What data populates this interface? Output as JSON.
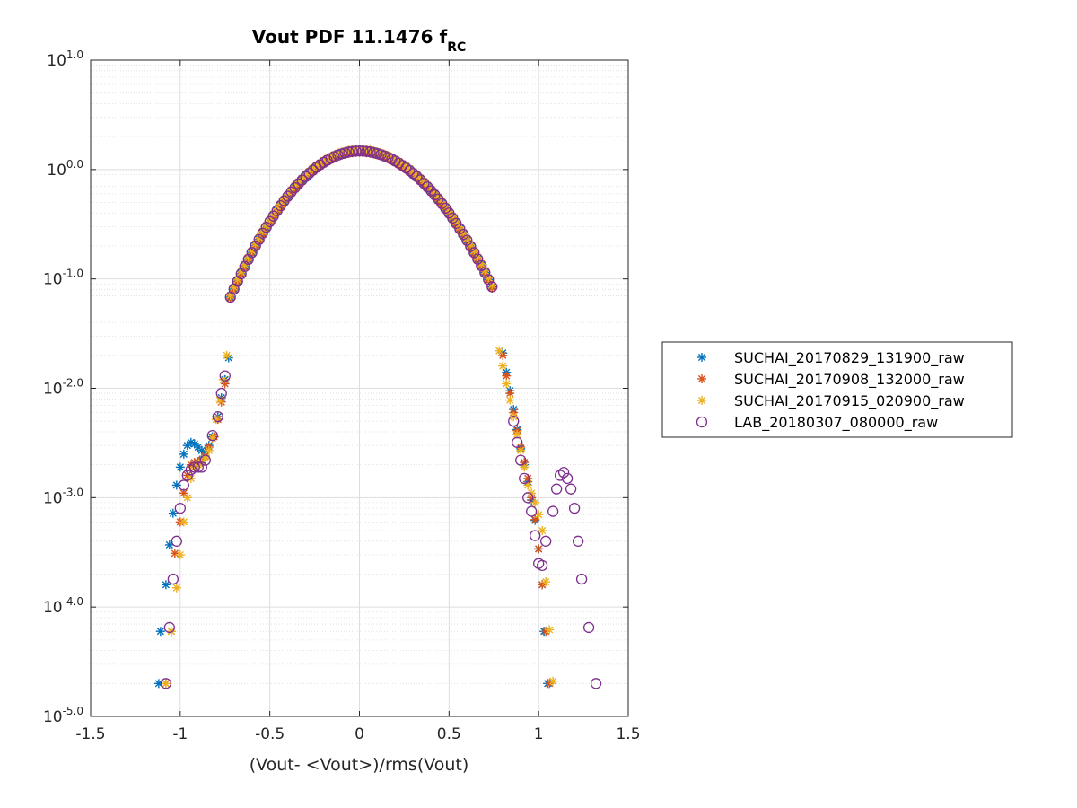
{
  "chart_data": {
    "type": "scatter",
    "title": "Vout PDF 11.1476 f",
    "title_subscript": "RC",
    "xlabel": "(Vout- <Vout>)/rms(Vout)",
    "ylabel": "",
    "xlim": [
      -1.5,
      1.5
    ],
    "ylim": [
      1e-05,
      10
    ],
    "yscale": "log",
    "grid": true,
    "minor_grid": true,
    "legend_position": "east-outside",
    "x_ticks": [
      {
        "value": -1.5,
        "label": "-1.5"
      },
      {
        "value": -1,
        "label": "-1"
      },
      {
        "value": -0.5,
        "label": "-0.5"
      },
      {
        "value": 0,
        "label": "0"
      },
      {
        "value": 0.5,
        "label": "0.5"
      },
      {
        "value": 1,
        "label": "1"
      },
      {
        "value": 1.5,
        "label": "1.5"
      }
    ],
    "y_ticks": [
      {
        "exp": 1,
        "base": "10",
        "sup": "1.0"
      },
      {
        "exp": 0,
        "base": "10",
        "sup": "0.0"
      },
      {
        "exp": -1,
        "base": "10",
        "sup": "-1.0"
      },
      {
        "exp": -2,
        "base": "10",
        "sup": "-2.0"
      },
      {
        "exp": -3,
        "base": "10",
        "sup": "-3.0"
      },
      {
        "exp": -4,
        "base": "10",
        "sup": "-4.0"
      },
      {
        "exp": -5,
        "base": "10",
        "sup": "-5.0"
      }
    ],
    "central_x_step": 0.02,
    "central_x_range": [
      -0.72,
      0.74
    ],
    "series": [
      {
        "name": "SUCHAI_20170829_131900_raw",
        "color": "#0072BD",
        "marker": "asterisk",
        "central_scale": 1.0,
        "points": [
          [
            -1.12,
            2e-05
          ],
          [
            -1.11,
            6e-05
          ],
          [
            -1.08,
            0.00016
          ],
          [
            -1.06,
            0.00037
          ],
          [
            -1.04,
            0.00072
          ],
          [
            -1.02,
            0.0013
          ],
          [
            -1.0,
            0.0019
          ],
          [
            -0.98,
            0.0025
          ],
          [
            -0.96,
            0.003
          ],
          [
            -0.94,
            0.0032
          ],
          [
            -0.92,
            0.0031
          ],
          [
            -0.9,
            0.0029
          ],
          [
            -0.88,
            0.0027
          ],
          [
            -0.86,
            0.0026
          ],
          [
            -0.84,
            0.003
          ],
          [
            -0.82,
            0.0036
          ],
          [
            -0.79,
            0.0055
          ],
          [
            -0.77,
            0.0082
          ],
          [
            -0.75,
            0.012
          ],
          [
            -0.73,
            0.019
          ],
          [
            -0.89,
            0.0022
          ],
          [
            0.8,
            0.021
          ],
          [
            0.82,
            0.014
          ],
          [
            0.84,
            0.0095
          ],
          [
            0.86,
            0.0064
          ],
          [
            0.88,
            0.0042
          ],
          [
            0.9,
            0.0028
          ],
          [
            0.92,
            0.002
          ],
          [
            0.94,
            0.0014
          ],
          [
            0.96,
            0.00095
          ],
          [
            0.98,
            0.00062
          ],
          [
            1.0,
            0.00034
          ],
          [
            1.02,
            0.00016
          ],
          [
            1.03,
            6e-05
          ],
          [
            1.05,
            2e-05
          ]
        ]
      },
      {
        "name": "SUCHAI_20170908_132000_raw",
        "color": "#D95319",
        "marker": "asterisk",
        "central_scale": 0.97,
        "points": [
          [
            -1.08,
            2e-05
          ],
          [
            -1.05,
            6e-05
          ],
          [
            -1.03,
            0.00031
          ],
          [
            -1.0,
            0.0006
          ],
          [
            -0.98,
            0.0011
          ],
          [
            -0.96,
            0.0016
          ],
          [
            -0.94,
            0.002
          ],
          [
            -0.92,
            0.0021
          ],
          [
            -0.9,
            0.0021
          ],
          [
            -0.88,
            0.0022
          ],
          [
            -0.86,
            0.0024
          ],
          [
            -0.84,
            0.0029
          ],
          [
            -0.81,
            0.0036
          ],
          [
            -0.79,
            0.0052
          ],
          [
            -0.77,
            0.0075
          ],
          [
            -0.75,
            0.011
          ],
          [
            0.8,
            0.02
          ],
          [
            0.82,
            0.013
          ],
          [
            0.84,
            0.009
          ],
          [
            0.86,
            0.006
          ],
          [
            0.88,
            0.0041
          ],
          [
            0.9,
            0.0029
          ],
          [
            0.92,
            0.0021
          ],
          [
            0.94,
            0.0015
          ],
          [
            0.96,
            0.001
          ],
          [
            0.98,
            0.00063
          ],
          [
            1.0,
            0.00034
          ],
          [
            1.02,
            0.00016
          ],
          [
            1.04,
            6e-05
          ],
          [
            1.06,
            2e-05
          ]
        ]
      },
      {
        "name": "SUCHAI_20170915_020900_raw",
        "color": "#EDB120",
        "marker": "asterisk",
        "central_scale": 1.04,
        "points": [
          [
            -1.08,
            2e-05
          ],
          [
            -1.05,
            6e-05
          ],
          [
            -1.02,
            0.00015
          ],
          [
            -1.0,
            0.0003
          ],
          [
            -0.98,
            0.0006
          ],
          [
            -0.96,
            0.001
          ],
          [
            -0.94,
            0.0015
          ],
          [
            -0.92,
            0.0019
          ],
          [
            -0.9,
            0.002
          ],
          [
            -0.88,
            0.0021
          ],
          [
            -0.86,
            0.0023
          ],
          [
            -0.84,
            0.0027
          ],
          [
            -0.82,
            0.0035
          ],
          [
            -0.8,
            0.0052
          ],
          [
            -0.78,
            0.0078
          ],
          [
            -0.76,
            0.012
          ],
          [
            -0.74,
            0.02
          ],
          [
            0.78,
            0.022
          ],
          [
            0.8,
            0.016
          ],
          [
            0.82,
            0.011
          ],
          [
            0.84,
            0.0078
          ],
          [
            0.86,
            0.0055
          ],
          [
            0.88,
            0.0038
          ],
          [
            0.9,
            0.0027
          ],
          [
            0.92,
            0.0019
          ],
          [
            0.94,
            0.0013
          ],
          [
            0.96,
            0.0011
          ],
          [
            0.98,
            0.0009
          ],
          [
            1.0,
            0.0007
          ],
          [
            1.02,
            0.0005
          ],
          [
            1.04,
            0.00017
          ],
          [
            1.06,
            6.2e-05
          ],
          [
            1.08,
            2.1e-05
          ]
        ]
      },
      {
        "name": "LAB_20180307_080000_raw",
        "color": "#7E2F8E",
        "marker": "circle",
        "central_scale": 1.0,
        "points": [
          [
            -1.08,
            2e-05
          ],
          [
            -1.06,
            6.5e-05
          ],
          [
            -1.04,
            0.00018
          ],
          [
            -1.02,
            0.0004
          ],
          [
            -1.0,
            0.0008
          ],
          [
            -0.98,
            0.0013
          ],
          [
            -0.96,
            0.0016
          ],
          [
            -0.94,
            0.0018
          ],
          [
            -0.92,
            0.0019
          ],
          [
            -0.9,
            0.0019
          ],
          [
            -0.88,
            0.0019
          ],
          [
            -0.86,
            0.0022
          ],
          [
            -0.82,
            0.0037
          ],
          [
            -0.79,
            0.0055
          ],
          [
            -0.77,
            0.009
          ],
          [
            -0.75,
            0.013
          ],
          [
            0.86,
            0.005
          ],
          [
            0.88,
            0.0032
          ],
          [
            0.9,
            0.0022
          ],
          [
            0.92,
            0.0015
          ],
          [
            0.94,
            0.001
          ],
          [
            0.96,
            0.00075
          ],
          [
            0.98,
            0.00045
          ],
          [
            1.0,
            0.00025
          ],
          [
            1.02,
            0.00024
          ],
          [
            1.04,
            0.0004
          ],
          [
            1.08,
            0.00075
          ],
          [
            1.1,
            0.0012
          ],
          [
            1.12,
            0.0016
          ],
          [
            1.14,
            0.0017
          ],
          [
            1.16,
            0.0015
          ],
          [
            1.18,
            0.0012
          ],
          [
            1.2,
            0.0008
          ],
          [
            1.22,
            0.0004
          ],
          [
            1.24,
            0.00018
          ],
          [
            1.28,
            6.5e-05
          ],
          [
            1.32,
            2e-05
          ]
        ]
      }
    ]
  }
}
